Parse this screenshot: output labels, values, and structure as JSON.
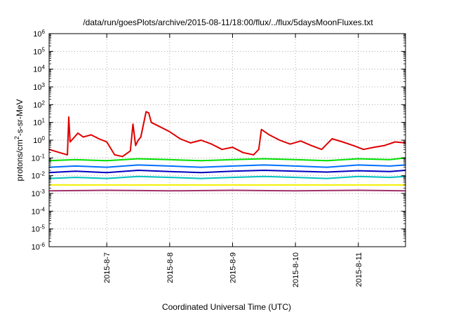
{
  "chart_data": {
    "type": "line",
    "title": "/data/run/goesPlots/archive/2015-08-11/18:00/flux/../flux/5daysMoonFluxes.txt",
    "xlabel": "Coordinated Universal Time (UTC)",
    "ylabel_parts": [
      "protons/cm",
      "2",
      "-s-sr-MeV"
    ],
    "y_scale": "log",
    "ylim": [
      1e-06,
      1000000.0
    ],
    "xlim": [
      "2015-08-06T02:00",
      "2015-08-11T18:00"
    ],
    "grid": true,
    "x_ticks": [
      "2015-8-7",
      "2015-8-8",
      "2015-8-9",
      "2015-8-10",
      "2015-8-11"
    ],
    "y_ticks": [
      {
        "base": "10",
        "exp": "-6"
      },
      {
        "base": "10",
        "exp": "-5"
      },
      {
        "base": "10",
        "exp": "-4"
      },
      {
        "base": "10",
        "exp": "-3"
      },
      {
        "base": "10",
        "exp": "-2"
      },
      {
        "base": "10",
        "exp": "-1"
      },
      {
        "base": "10",
        "exp": "0"
      },
      {
        "base": "10",
        "exp": "1"
      },
      {
        "base": "10",
        "exp": "2"
      },
      {
        "base": "10",
        "exp": "3"
      },
      {
        "base": "10",
        "exp": "4"
      },
      {
        "base": "10",
        "exp": "5"
      },
      {
        "base": "10",
        "exp": "6"
      }
    ],
    "series": [
      {
        "color": "#e00000",
        "x": [
          "2015-08-06T02:00",
          "2015-08-06T06:00",
          "2015-08-06T09:00",
          "2015-08-06T09:30",
          "2015-08-06T10:00",
          "2015-08-06T13:00",
          "2015-08-06T15:00",
          "2015-08-06T18:00",
          "2015-08-06T21:00",
          "2015-08-07T00:00",
          "2015-08-07T03:00",
          "2015-08-07T06:00",
          "2015-08-07T09:00",
          "2015-08-07T10:00",
          "2015-08-07T11:00",
          "2015-08-07T12:00",
          "2015-08-07T13:00",
          "2015-08-07T15:00",
          "2015-08-07T16:00",
          "2015-08-07T17:00",
          "2015-08-07T20:00",
          "2015-08-08T00:00",
          "2015-08-08T04:00",
          "2015-08-08T08:00",
          "2015-08-08T12:00",
          "2015-08-08T16:00",
          "2015-08-08T20:00",
          "2015-08-09T00:00",
          "2015-08-09T04:00",
          "2015-08-09T08:00",
          "2015-08-09T10:00",
          "2015-08-09T11:00",
          "2015-08-09T14:00",
          "2015-08-09T18:00",
          "2015-08-09T22:00",
          "2015-08-10T02:00",
          "2015-08-10T06:00",
          "2015-08-10T10:00",
          "2015-08-10T14:00",
          "2015-08-10T18:00",
          "2015-08-10T22:00",
          "2015-08-11T02:00",
          "2015-08-11T06:00",
          "2015-08-11T10:00",
          "2015-08-11T14:00",
          "2015-08-11T18:00"
        ],
        "y": [
          0.3,
          0.2,
          0.15,
          20,
          0.8,
          2.5,
          1.5,
          2.0,
          1.2,
          0.8,
          0.15,
          0.12,
          0.25,
          8,
          0.5,
          1.0,
          1.5,
          40,
          35,
          10,
          6,
          3,
          1.2,
          0.7,
          1.0,
          0.6,
          0.3,
          0.4,
          0.2,
          0.15,
          0.3,
          4,
          2,
          1.0,
          0.6,
          0.9,
          0.5,
          0.3,
          1.2,
          0.8,
          0.5,
          0.3,
          0.4,
          0.5,
          0.8,
          0.7
        ]
      },
      {
        "color": "#00e000",
        "x": [
          "2015-08-06T02:00",
          "2015-08-06T12:00",
          "2015-08-07T00:00",
          "2015-08-07T12:00",
          "2015-08-08T00:00",
          "2015-08-08T12:00",
          "2015-08-09T00:00",
          "2015-08-09T12:00",
          "2015-08-10T00:00",
          "2015-08-10T12:00",
          "2015-08-11T00:00",
          "2015-08-11T12:00",
          "2015-08-11T18:00"
        ],
        "y": [
          0.07,
          0.08,
          0.07,
          0.09,
          0.08,
          0.07,
          0.08,
          0.09,
          0.08,
          0.07,
          0.09,
          0.08,
          0.1
        ]
      },
      {
        "color": "#0070ff",
        "x": [
          "2015-08-06T02:00",
          "2015-08-06T12:00",
          "2015-08-07T00:00",
          "2015-08-07T12:00",
          "2015-08-08T00:00",
          "2015-08-08T12:00",
          "2015-08-09T00:00",
          "2015-08-09T12:00",
          "2015-08-10T00:00",
          "2015-08-10T12:00",
          "2015-08-11T00:00",
          "2015-08-11T12:00",
          "2015-08-11T18:00"
        ],
        "y": [
          0.03,
          0.035,
          0.03,
          0.04,
          0.035,
          0.03,
          0.035,
          0.04,
          0.035,
          0.03,
          0.04,
          0.035,
          0.04
        ]
      },
      {
        "color": "#0000c0",
        "x": [
          "2015-08-06T02:00",
          "2015-08-06T12:00",
          "2015-08-07T00:00",
          "2015-08-07T12:00",
          "2015-08-08T00:00",
          "2015-08-08T12:00",
          "2015-08-09T00:00",
          "2015-08-09T12:00",
          "2015-08-10T00:00",
          "2015-08-10T12:00",
          "2015-08-11T00:00",
          "2015-08-11T12:00",
          "2015-08-11T18:00"
        ],
        "y": [
          0.015,
          0.018,
          0.015,
          0.02,
          0.017,
          0.015,
          0.018,
          0.02,
          0.018,
          0.016,
          0.019,
          0.017,
          0.02
        ]
      },
      {
        "color": "#00c0c0",
        "x": [
          "2015-08-06T02:00",
          "2015-08-06T12:00",
          "2015-08-07T00:00",
          "2015-08-07T12:00",
          "2015-08-08T00:00",
          "2015-08-08T12:00",
          "2015-08-09T00:00",
          "2015-08-09T12:00",
          "2015-08-10T00:00",
          "2015-08-10T12:00",
          "2015-08-11T00:00",
          "2015-08-11T12:00",
          "2015-08-11T18:00"
        ],
        "y": [
          0.007,
          0.008,
          0.007,
          0.009,
          0.008,
          0.007,
          0.008,
          0.009,
          0.008,
          0.007,
          0.009,
          0.008,
          0.009
        ]
      },
      {
        "color": "#f0f000",
        "x": [
          "2015-08-06T02:00",
          "2015-08-07T00:00",
          "2015-08-08T00:00",
          "2015-08-09T00:00",
          "2015-08-10T00:00",
          "2015-08-11T00:00",
          "2015-08-11T18:00"
        ],
        "y": [
          0.003,
          0.003,
          0.003,
          0.003,
          0.003,
          0.003,
          0.003
        ]
      },
      {
        "color": "#a0306a",
        "x": [
          "2015-08-06T02:00",
          "2015-08-07T00:00",
          "2015-08-08T00:00",
          "2015-08-09T00:00",
          "2015-08-10T00:00",
          "2015-08-11T00:00",
          "2015-08-11T18:00"
        ],
        "y": [
          0.0014,
          0.0015,
          0.0014,
          0.0015,
          0.0014,
          0.0015,
          0.0014
        ]
      }
    ]
  }
}
